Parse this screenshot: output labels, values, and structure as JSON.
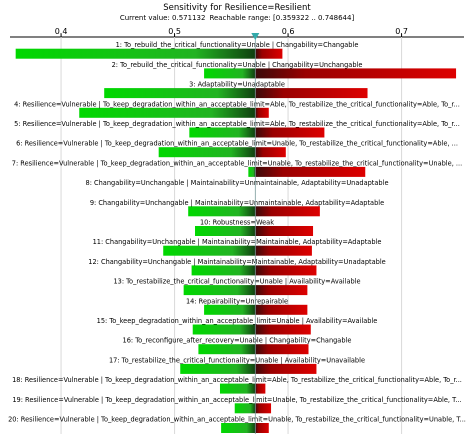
{
  "chart_data": {
    "type": "tornado",
    "title": "Sensitivity for Resilience=Resilient",
    "current_value_label": "Current value: 0.571132",
    "reachable_range_label": "Reachable range: [0.359322 .. 0.748644]",
    "current_value": 0.571132,
    "x_ticks": [
      "0.4",
      "0.5",
      "0.6",
      "0.7"
    ],
    "x_tick_values": [
      0.4,
      0.5,
      0.6,
      0.7
    ],
    "xlim": [
      0.355,
      0.755
    ],
    "colors": {
      "low": "#00cc00",
      "high": "#cc0000",
      "marker": "#33aaaa",
      "grid": "#d9d9d9"
    },
    "bars": [
      {
        "label": "1: To_rebuild_the_critical_functionality=Unable | Changability=Changable",
        "low": 0.36,
        "high": 0.595
      },
      {
        "label": "2: To_rebuild_the_critical_functionality=Unable | Changability=Unchangable",
        "low": 0.526,
        "high": 0.748
      },
      {
        "label": "3: Adaptability=Unadaptable",
        "low": 0.438,
        "high": 0.67
      },
      {
        "label": "4: Resilience=Vulnerable | To_keep_degradation_within_an_acceptable_limit=Able, To_restabilize_the_critical_functionality=Able, To_r...",
        "low": 0.416,
        "high": 0.583
      },
      {
        "label": "5: Resilience=Vulnerable | To_keep_degradation_within_an_acceptable_limit=Able, To_restabilize_the_critical_functionality=Able, To_r...",
        "low": 0.513,
        "high": 0.632
      },
      {
        "label": "6: Resilience=Vulnerable | To_keep_degradation_within_an_acceptable_limit=Unable, To_restabilize_the_critical_functionality=Able, ...",
        "low": 0.486,
        "high": 0.598
      },
      {
        "label": "7: Resilience=Vulnerable | To_keep_degradation_within_an_acceptable_limit=Unable, To_restabilize_the_critical_functionality=Unable, ...",
        "low": 0.565,
        "high": 0.668
      },
      {
        "label": "8: Changability=Unchangable | Maintainability=Unmaintainable, Adaptability=Unadaptable",
        "low": 0.571,
        "high": 0.571
      },
      {
        "label": "9: Changability=Unchangable | Maintainability=Unmaintainable, Adaptability=Adaptable",
        "low": 0.512,
        "high": 0.628
      },
      {
        "label": "10: Robustness=Weak",
        "low": 0.518,
        "high": 0.622
      },
      {
        "label": "11: Changability=Unchangable | Maintainability=Maintainable, Adaptability=Adaptable",
        "low": 0.49,
        "high": 0.621
      },
      {
        "label": "12: Changability=Unchangable | Maintainability=Maintainable, Adaptability=Unadaptable",
        "low": 0.515,
        "high": 0.625
      },
      {
        "label": "13: To_restabilize_the_critical_functionality=Unable | Availability=Available",
        "low": 0.508,
        "high": 0.617
      },
      {
        "label": "14: Repairability=Unrepairable",
        "low": 0.526,
        "high": 0.617
      },
      {
        "label": "15: To_keep_degradation_within_an_acceptable_limit=Unable | Availability=Available",
        "low": 0.516,
        "high": 0.62
      },
      {
        "label": "16: To_reconfigure_after_recovery=Unable | Changability=Changable",
        "low": 0.521,
        "high": 0.618
      },
      {
        "label": "17: To_restabilize_the_critical_functionality=Unable | Availability=Unavailable",
        "low": 0.505,
        "high": 0.625
      },
      {
        "label": "18: Resilience=Vulnerable | To_keep_degradation_within_an_acceptable_limit=Able, To_restabilize_the_critical_functionality=Able, To_r...",
        "low": 0.54,
        "high": 0.58
      },
      {
        "label": "19: Resilience=Vulnerable | To_keep_degradation_within_an_acceptable_limit=Unable, To_restabilize_the_critical_functionality=Able, T...",
        "low": 0.553,
        "high": 0.585
      },
      {
        "label": "20: Resilience=Vulnerable | To_keep_degradation_within_an_acceptable_limit=Unable, To_restabilize_the_critical_functionality=Unable, T...",
        "low": 0.541,
        "high": 0.583
      }
    ]
  }
}
